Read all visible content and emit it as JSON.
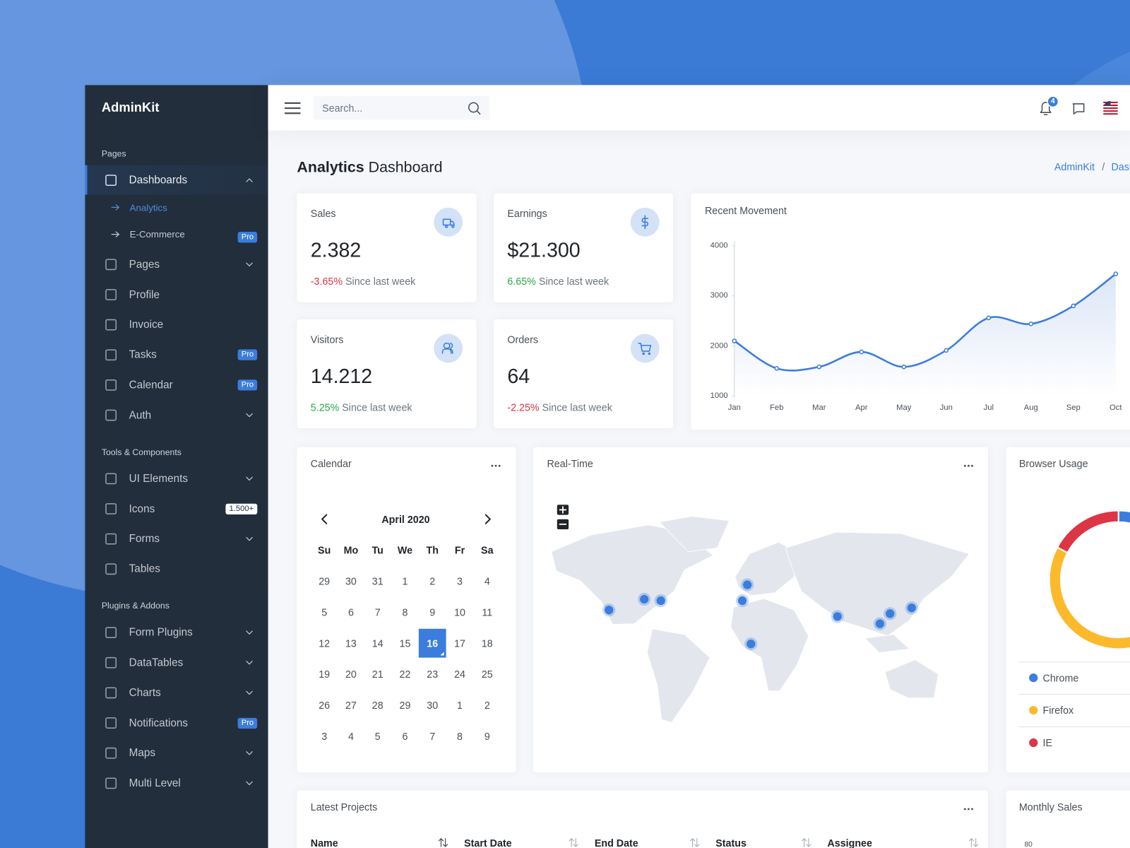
{
  "sidebar": {
    "brand": "AdminKit",
    "sections": [
      {
        "header": "Pages",
        "items": [
          {
            "label": "Dashboards",
            "open": true,
            "children": [
              {
                "label": "Analytics",
                "active": true
              },
              {
                "label": "E-Commerce",
                "badge": "Pro"
              }
            ]
          },
          {
            "label": "Pages",
            "chevron": true
          },
          {
            "label": "Profile"
          },
          {
            "label": "Invoice"
          },
          {
            "label": "Tasks",
            "badge": "Pro"
          },
          {
            "label": "Calendar",
            "badge": "Pro"
          },
          {
            "label": "Auth",
            "chevron": true
          }
        ]
      },
      {
        "header": "Tools & Components",
        "items": [
          {
            "label": "UI Elements",
            "chevron": true
          },
          {
            "label": "Icons",
            "badge": "1.500+",
            "badge_light": true
          },
          {
            "label": "Forms",
            "chevron": true
          },
          {
            "label": "Tables"
          }
        ]
      },
      {
        "header": "Plugins & Addons",
        "items": [
          {
            "label": "Form Plugins",
            "chevron": true
          },
          {
            "label": "DataTables",
            "chevron": true
          },
          {
            "label": "Charts",
            "chevron": true
          },
          {
            "label": "Notifications",
            "badge": "Pro"
          },
          {
            "label": "Maps",
            "chevron": true
          },
          {
            "label": "Multi Level",
            "chevron": true
          }
        ]
      }
    ]
  },
  "topbar": {
    "search_placeholder": "Search...",
    "notifications": 4
  },
  "header": {
    "title_strong": "Analytics",
    "title": "Dashboard",
    "breadcrumb": [
      "AdminKit",
      "Dashboards"
    ],
    "breadcrumb_separator": "/"
  },
  "stats": [
    {
      "label": "Sales",
      "value": "2.382",
      "change": "-3.65%",
      "trend": "down",
      "note": "Since last week"
    },
    {
      "label": "Earnings",
      "value": "$21.300",
      "change": "6.65%",
      "trend": "up",
      "note": "Since last week"
    },
    {
      "label": "Visitors",
      "value": "14.212",
      "change": "5.25%",
      "trend": "up",
      "note": "Since last week"
    },
    {
      "label": "Orders",
      "value": "64",
      "change": "-2.25%",
      "trend": "down",
      "note": "Since last week"
    }
  ],
  "calendar": {
    "title": "Calendar",
    "month": "April 2020",
    "weekdays": [
      "Su",
      "Mo",
      "Tu",
      "We",
      "Th",
      "Fr",
      "Sa"
    ],
    "weeks": [
      [
        29,
        30,
        31,
        1,
        2,
        3,
        4
      ],
      [
        5,
        6,
        7,
        8,
        9,
        10,
        11
      ],
      [
        12,
        13,
        14,
        15,
        16,
        17,
        18
      ],
      [
        19,
        20,
        21,
        22,
        23,
        24,
        25
      ],
      [
        26,
        27,
        28,
        29,
        30,
        1,
        2
      ],
      [
        3,
        4,
        5,
        6,
        7,
        8,
        9
      ]
    ],
    "selected": 16
  },
  "realtime": {
    "title": "Real-Time"
  },
  "chart_data": [
    {
      "type": "line",
      "title": "Recent Movement",
      "categories": [
        "Jan",
        "Feb",
        "Mar",
        "Apr",
        "May",
        "Jun",
        "Jul",
        "Aug",
        "Sep",
        "Oct"
      ],
      "values": [
        2100,
        1550,
        1580,
        1880,
        1580,
        1910,
        2560,
        2440,
        2800,
        3440
      ],
      "color": "#3b7ddd",
      "fill": "#dbe6f7",
      "ylim": [
        1000,
        4000
      ],
      "yticks": [
        1000,
        2000,
        3000,
        4000
      ],
      "grid": false
    },
    {
      "type": "doughnut",
      "title": "Browser Usage",
      "categories": [
        "Chrome",
        "Firefox",
        "IE"
      ],
      "values": [
        4306,
        3801,
        1689
      ],
      "colors": [
        "#3b7ddd",
        "#fcb92c",
        "#dc3545"
      ]
    }
  ],
  "projects": {
    "title": "Latest Projects",
    "columns": [
      "Name",
      "Start Date",
      "End Date",
      "Status",
      "Assignee"
    ]
  },
  "monthly_sales": {
    "title": "Monthly Sales",
    "yticks": [
      80
    ]
  }
}
